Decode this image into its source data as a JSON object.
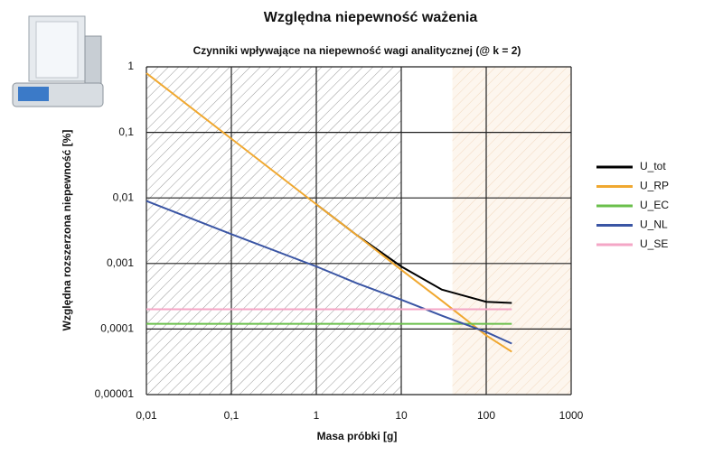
{
  "chart_data": {
    "type": "line",
    "title": "Względna niepewność ważenia",
    "subtitle": "Czynniki wpływające na niepewność wagi analitycznej (@ k = 2)",
    "x_label": "Masa próbki [g]",
    "y_label": "Względna rozszerzona niepewność [%]",
    "x_scale": "log",
    "y_scale": "log",
    "grid": true,
    "legend": "right",
    "xlim": [
      0.01,
      1000
    ],
    "ylim": [
      1e-05,
      1
    ],
    "xticks": [
      {
        "value": 0.01,
        "label": "0,01"
      },
      {
        "value": 0.1,
        "label": "0,1"
      },
      1,
      10,
      100,
      1000
    ],
    "yticks": [
      {
        "value": 1e-05,
        "label": "0,00001"
      },
      {
        "value": 0.0001,
        "label": "0,0001"
      },
      {
        "value": 0.001,
        "label": "0,001"
      },
      {
        "value": 0.01,
        "label": "0,01"
      },
      {
        "value": 0.1,
        "label": "0,1"
      },
      1
    ],
    "shaded_regions": [
      {
        "from": 0.01,
        "to": 10,
        "color": "#9a9a9a",
        "fill": "#ffffff"
      },
      {
        "from": 40,
        "to": 1000,
        "color": "#f2d9bf",
        "fill": "#fdf6ee"
      }
    ],
    "x": [
      0.01,
      0.1,
      1,
      3,
      10,
      30,
      100,
      200
    ],
    "series": [
      {
        "name": "U_tot",
        "color": "#000000",
        "values": [
          null,
          null,
          0.008,
          0.0027,
          0.0009,
          0.0004,
          0.00026,
          0.00025
        ]
      },
      {
        "name": "U_RP",
        "color": "#f0a830",
        "values": [
          0.8,
          0.08,
          0.008,
          0.0027,
          0.0008,
          0.00027,
          8e-05,
          4.5e-05
        ]
      },
      {
        "name": "U_EC",
        "color": "#6abf4b",
        "values": [
          0.00012,
          0.00012,
          0.00012,
          0.00012,
          0.00012,
          0.00012,
          0.00012,
          0.00012
        ]
      },
      {
        "name": "U_NL",
        "color": "#3a55a4",
        "values": [
          0.009,
          0.0028,
          0.0009,
          0.0005,
          0.00028,
          0.00016,
          9e-05,
          6e-05
        ]
      },
      {
        "name": "U_SE",
        "color": "#f4a6c6",
        "values": [
          0.0002,
          0.0002,
          0.0002,
          0.0002,
          0.0002,
          0.0002,
          0.0002,
          0.0002
        ]
      }
    ]
  }
}
